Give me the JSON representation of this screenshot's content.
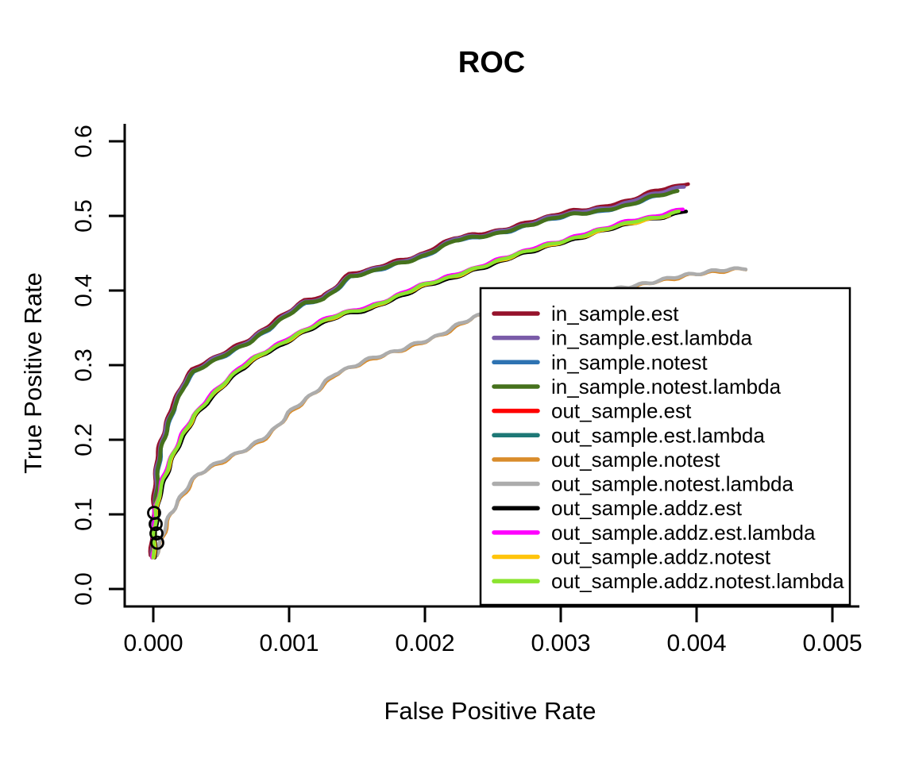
{
  "title": "ROC",
  "axes": {
    "x_label": "False Positive Rate",
    "y_label": "True Positive Rate",
    "x_ticks": [
      "0.000",
      "0.001",
      "0.002",
      "0.003",
      "0.004",
      "0.005"
    ],
    "y_ticks": [
      "0.0",
      "0.1",
      "0.2",
      "0.3",
      "0.4",
      "0.5",
      "0.6"
    ]
  },
  "legend": {
    "entries": [
      {
        "label": "in_sample.est",
        "color": "#95122B"
      },
      {
        "label": "in_sample.est.lambda",
        "color": "#7A5BA8"
      },
      {
        "label": "in_sample.notest",
        "color": "#2E73B2"
      },
      {
        "label": "in_sample.notest.lambda",
        "color": "#45711C"
      },
      {
        "label": "out_sample.est",
        "color": "#FF0000"
      },
      {
        "label": "out_sample.est.lambda",
        "color": "#1E7876"
      },
      {
        "label": "out_sample.notest",
        "color": "#D98C2B"
      },
      {
        "label": "out_sample.notest.lambda",
        "color": "#ACACAC"
      },
      {
        "label": "out_sample.addz.est",
        "color": "#000000"
      },
      {
        "label": "out_sample.addz.est.lambda",
        "color": "#FF00FF"
      },
      {
        "label": "out_sample.addz.notest",
        "color": "#FFC40A"
      },
      {
        "label": "out_sample.addz.notest.lambda",
        "color": "#8BE42F"
      }
    ]
  },
  "chart_data": {
    "type": "line",
    "title": "ROC",
    "xlabel": "False Positive Rate",
    "ylabel": "True Positive Rate",
    "xlim": [
      0,
      0.005
    ],
    "ylim": [
      0,
      0.6
    ],
    "x_tick_values": [
      0,
      0.001,
      0.002,
      0.003,
      0.004,
      0.005
    ],
    "y_tick_values": [
      0,
      0.1,
      0.2,
      0.3,
      0.4,
      0.5,
      0.6
    ],
    "grid": false,
    "legend_position": "inside-bottom-right",
    "bands": {
      "upper": [
        [
          2e-06,
          0.045
        ],
        [
          8e-06,
          0.095
        ],
        [
          2e-05,
          0.135
        ],
        [
          4e-05,
          0.168
        ],
        [
          7e-05,
          0.198
        ],
        [
          0.0001,
          0.218
        ],
        [
          0.00015,
          0.246
        ],
        [
          0.00022,
          0.272
        ],
        [
          0.0003,
          0.291
        ],
        [
          0.00043,
          0.305
        ],
        [
          0.00055,
          0.317
        ],
        [
          0.0007,
          0.332
        ],
        [
          0.00085,
          0.349
        ],
        [
          0.001,
          0.369
        ],
        [
          0.00112,
          0.384
        ],
        [
          0.00125,
          0.39
        ],
        [
          0.00137,
          0.407
        ],
        [
          0.00145,
          0.419
        ],
        [
          0.0016,
          0.425
        ],
        [
          0.0018,
          0.437
        ],
        [
          0.002,
          0.448
        ],
        [
          0.00212,
          0.459
        ],
        [
          0.00222,
          0.468
        ],
        [
          0.0024,
          0.472
        ],
        [
          0.0026,
          0.481
        ],
        [
          0.00285,
          0.493
        ],
        [
          0.0031,
          0.503
        ],
        [
          0.0033,
          0.508
        ],
        [
          0.0035,
          0.516
        ],
        [
          0.0037,
          0.527
        ],
        [
          0.00385,
          0.533
        ],
        [
          0.00394,
          0.537
        ]
      ],
      "middle": [
        [
          5e-06,
          0.042
        ],
        [
          1e-05,
          0.08
        ],
        [
          2e-05,
          0.105
        ],
        [
          4e-05,
          0.128
        ],
        [
          7e-05,
          0.148
        ],
        [
          0.00012,
          0.168
        ],
        [
          0.00016,
          0.184
        ],
        [
          0.00022,
          0.206
        ],
        [
          0.0003,
          0.232
        ],
        [
          0.0004,
          0.255
        ],
        [
          0.0005,
          0.272
        ],
        [
          0.00064,
          0.295
        ],
        [
          0.0008,
          0.315
        ],
        [
          0.001,
          0.336
        ],
        [
          0.00121,
          0.355
        ],
        [
          0.0014,
          0.369
        ],
        [
          0.0016,
          0.378
        ],
        [
          0.0018,
          0.393
        ],
        [
          0.00197,
          0.405
        ],
        [
          0.0022,
          0.419
        ],
        [
          0.0024,
          0.432
        ],
        [
          0.0026,
          0.443
        ],
        [
          0.00285,
          0.458
        ],
        [
          0.0031,
          0.471
        ],
        [
          0.0033,
          0.48
        ],
        [
          0.0035,
          0.49
        ],
        [
          0.0037,
          0.498
        ],
        [
          0.00392,
          0.507
        ]
      ],
      "lower": [
        [
          2e-05,
          0.045
        ],
        [
          5e-05,
          0.062
        ],
        [
          8e-05,
          0.082
        ],
        [
          0.00012,
          0.101
        ],
        [
          0.00018,
          0.118
        ],
        [
          0.00025,
          0.135
        ],
        [
          0.00033,
          0.153
        ],
        [
          0.00045,
          0.166
        ],
        [
          0.0006,
          0.181
        ],
        [
          0.0008,
          0.201
        ],
        [
          0.0009,
          0.215
        ],
        [
          0.001,
          0.235
        ],
        [
          0.00115,
          0.258
        ],
        [
          0.00133,
          0.289
        ],
        [
          0.00154,
          0.304
        ],
        [
          0.0018,
          0.319
        ],
        [
          0.0021,
          0.341
        ],
        [
          0.00236,
          0.364
        ],
        [
          0.0026,
          0.376
        ],
        [
          0.0029,
          0.386
        ],
        [
          0.0032,
          0.396
        ],
        [
          0.0035,
          0.405
        ],
        [
          0.0037,
          0.414
        ],
        [
          0.004,
          0.422
        ],
        [
          0.0042,
          0.427
        ],
        [
          0.00436,
          0.431
        ]
      ]
    },
    "series": [
      {
        "name": "in_sample.est",
        "color": "#95122B",
        "band": "upper",
        "offset": 0.0028,
        "x_end": 0.00394,
        "end_lift": 0.004,
        "width": 4.5
      },
      {
        "name": "in_sample.est.lambda",
        "color": "#7A5BA8",
        "band": "upper",
        "offset": 0.001,
        "x_end": 0.00391,
        "end_lift": 0.0025,
        "width": 4.5
      },
      {
        "name": "in_sample.notest",
        "color": "#2E73B2",
        "band": "upper",
        "offset": -0.0015,
        "x_end": 0.00384,
        "end_lift": 0,
        "width": 4
      },
      {
        "name": "in_sample.notest.lambda",
        "color": "#45711C",
        "band": "upper",
        "offset": -0.0008,
        "x_end": 0.00386,
        "end_lift": 0,
        "width": 5
      },
      {
        "name": "out_sample.est",
        "color": "#FF0000",
        "band": "middle",
        "offset": 0.0004,
        "x_end": 0.00385,
        "end_lift": 0,
        "width": 4
      },
      {
        "name": "out_sample.est.lambda",
        "color": "#1E7876",
        "band": "middle",
        "offset": -0.0004,
        "x_end": 0.00384,
        "end_lift": 0,
        "width": 4
      },
      {
        "name": "out_sample.notest",
        "color": "#D98C2B",
        "band": "lower",
        "offset": -0.0012,
        "x_end": 0.00437,
        "end_lift": 0,
        "width": 4
      },
      {
        "name": "out_sample.notest.lambda",
        "color": "#ACACAC",
        "band": "lower",
        "offset": 0,
        "x_end": 0.00436,
        "end_lift": 0,
        "width": 4.5
      },
      {
        "name": "out_sample.addz.est",
        "color": "#000000",
        "band": "middle",
        "offset": -0.002,
        "x_end": 0.00392,
        "end_lift": 0.0015,
        "width": 4.5
      },
      {
        "name": "out_sample.addz.est.lambda",
        "color": "#FF00FF",
        "band": "middle",
        "offset": 0.0013,
        "x_end": 0.0039,
        "end_lift": 0.002,
        "width": 4.5
      },
      {
        "name": "out_sample.addz.notest",
        "color": "#FFC40A",
        "band": "middle",
        "offset": -0.001,
        "x_end": 0.0038,
        "end_lift": 0,
        "width": 3.5
      },
      {
        "name": "out_sample.addz.notest.lambda",
        "color": "#8BE42F",
        "band": "middle",
        "offset": 0,
        "x_end": 0.00387,
        "end_lift": 0.001,
        "width": 4.5
      }
    ],
    "markers": {
      "shape": "open-circle",
      "color": "#000000",
      "points": [
        [
          6e-06,
          0.102
        ],
        [
          1.75e-05,
          0.087
        ],
        [
          2.34e-05,
          0.0745
        ],
        [
          2.92e-05,
          0.062
        ]
      ]
    }
  }
}
